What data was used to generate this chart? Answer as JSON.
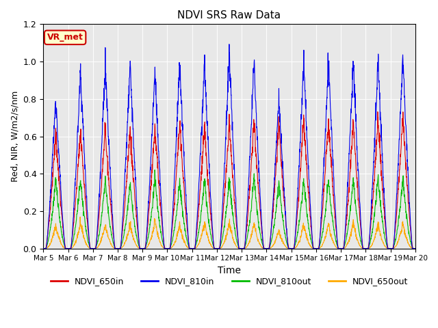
{
  "title": "NDVI SRS Raw Data",
  "xlabel": "Time",
  "ylabel": "Red, NIR, W/m2/s/nm",
  "ylim": [
    0.0,
    1.2
  ],
  "x_tick_labels": [
    "Mar 5",
    "Mar 6",
    "Mar 7",
    "Mar 8",
    "Mar 9",
    "Mar 10",
    "Mar 11",
    "Mar 12",
    "Mar 13",
    "Mar 14",
    "Mar 15",
    "Mar 16",
    "Mar 17",
    "Mar 18",
    "Mar 19",
    "Mar 20"
  ],
  "legend_labels": [
    "NDVI_650in",
    "NDVI_810in",
    "NDVI_810out",
    "NDVI_650out"
  ],
  "legend_colors": [
    "#dd0000",
    "#0000ee",
    "#00bb00",
    "#ffaa00"
  ],
  "background_color": "#e8e8e8",
  "annotation_text": "VR_met",
  "annotation_facecolor": "#ffffcc",
  "annotation_edgecolor": "#cc0000",
  "annotation_textcolor": "#cc0000",
  "num_cycles": 15,
  "spike_650in_heights": [
    0.62,
    0.63,
    0.65,
    0.64,
    0.66,
    0.67,
    0.65,
    0.67,
    0.68,
    0.67,
    0.7,
    0.69,
    0.68,
    0.7,
    0.7
  ],
  "spike_810in_heights": [
    0.8,
    0.95,
    0.98,
    1.0,
    0.95,
    1.0,
    1.0,
    1.05,
    1.0,
    0.8,
    1.0,
    1.0,
    1.0,
    1.0,
    1.03
  ],
  "spike_810out_heights": [
    0.37,
    0.37,
    0.36,
    0.35,
    0.38,
    0.36,
    0.37,
    0.37,
    0.38,
    0.36,
    0.37,
    0.37,
    0.37,
    0.38,
    0.38
  ],
  "spike_650out_heights": [
    0.13,
    0.14,
    0.13,
    0.13,
    0.15,
    0.13,
    0.14,
    0.14,
    0.13,
    0.1,
    0.13,
    0.13,
    0.14,
    0.13,
    0.14
  ],
  "baseline": 0.0
}
